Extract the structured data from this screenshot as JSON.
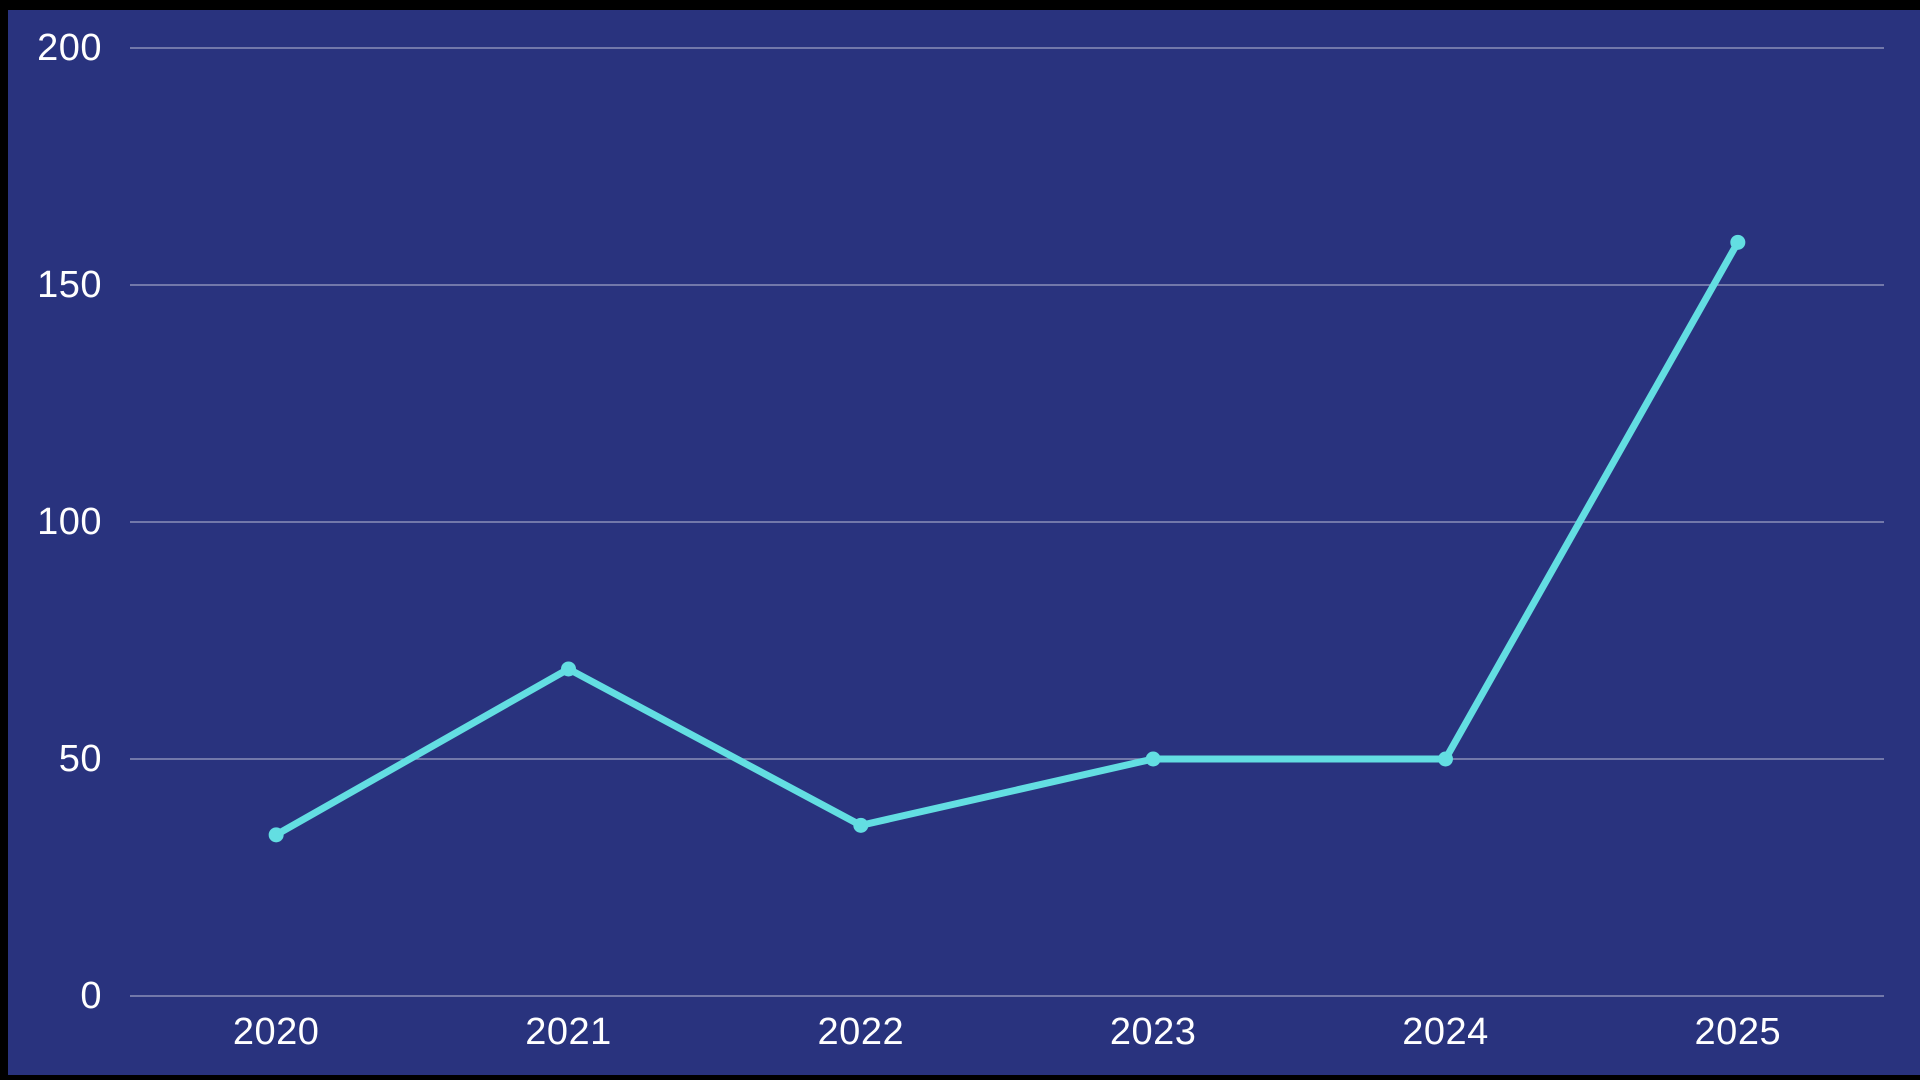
{
  "chart_data": {
    "type": "line",
    "categories": [
      "2020",
      "2021",
      "2022",
      "2023",
      "2024",
      "2025"
    ],
    "values": [
      34,
      69,
      36,
      50,
      50,
      159
    ],
    "yticks": [
      0,
      50,
      100,
      150,
      200
    ],
    "ylim": [
      0,
      200
    ],
    "grid": true,
    "legend": false,
    "colors": {
      "background": "#29337E",
      "line": "#63DEE2",
      "marker": "#63DEE2",
      "grid": "#8A8FB9",
      "text": "#FFFFFF",
      "frame": "#000000"
    }
  }
}
